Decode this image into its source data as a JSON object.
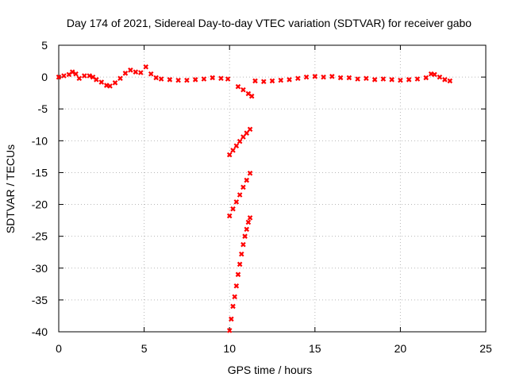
{
  "chart_data": {
    "type": "scatter",
    "title": "Day 174 of 2021, Sidereal Day-to-day VTEC variation (SDTVAR) for receiver gabo",
    "xlabel": "GPS time / hours",
    "ylabel": "SDTVAR / TECUs",
    "xlim": [
      0,
      25
    ],
    "ylim": [
      -40,
      5
    ],
    "xticks": [
      0,
      5,
      10,
      15,
      20,
      25
    ],
    "yticks": [
      -40,
      -35,
      -30,
      -25,
      -20,
      -15,
      -10,
      -5,
      0,
      5
    ],
    "xtick_labels": [
      "0",
      "5",
      "10",
      "15",
      "20",
      "25"
    ],
    "ytick_labels": [
      "-40",
      "-35",
      "-30",
      "-25",
      "-20",
      "-15",
      "-10",
      "-5",
      "0",
      "5"
    ],
    "grid": true,
    "legend": "none",
    "marker_color": "#ff0000",
    "series": [
      {
        "points": [
          [
            0.0,
            0.0
          ],
          [
            0.3,
            0.2
          ],
          [
            0.6,
            0.4
          ],
          [
            0.8,
            0.8
          ],
          [
            1.0,
            0.5
          ],
          [
            1.2,
            -0.2
          ],
          [
            1.5,
            0.2
          ],
          [
            1.8,
            0.2
          ],
          [
            2.0,
            0.0
          ],
          [
            2.2,
            -0.4
          ],
          [
            2.5,
            -0.8
          ],
          [
            2.8,
            -1.3
          ],
          [
            3.0,
            -1.4
          ],
          [
            3.3,
            -0.9
          ],
          [
            3.6,
            -0.2
          ],
          [
            3.9,
            0.6
          ],
          [
            4.2,
            1.1
          ],
          [
            4.5,
            0.8
          ],
          [
            4.8,
            0.7
          ],
          [
            5.1,
            1.6
          ],
          [
            5.4,
            0.5
          ],
          [
            5.7,
            -0.1
          ],
          [
            6.0,
            -0.3
          ],
          [
            6.5,
            -0.4
          ],
          [
            7.0,
            -0.5
          ],
          [
            7.5,
            -0.5
          ],
          [
            8.0,
            -0.4
          ],
          [
            8.5,
            -0.3
          ],
          [
            9.0,
            -0.1
          ],
          [
            9.5,
            -0.2
          ],
          [
            9.9,
            -0.3
          ],
          [
            10.5,
            -1.5
          ],
          [
            10.8,
            -2.0
          ],
          [
            11.1,
            -2.6
          ],
          [
            11.3,
            -3.0
          ],
          [
            11.5,
            -0.6
          ],
          [
            12.0,
            -0.7
          ],
          [
            12.5,
            -0.6
          ],
          [
            13.0,
            -0.5
          ],
          [
            13.5,
            -0.4
          ],
          [
            14.0,
            -0.2
          ],
          [
            14.5,
            0.0
          ],
          [
            15.0,
            0.1
          ],
          [
            15.5,
            0.0
          ],
          [
            16.0,
            0.1
          ],
          [
            16.5,
            -0.1
          ],
          [
            17.0,
            -0.1
          ],
          [
            17.5,
            -0.3
          ],
          [
            18.0,
            -0.2
          ],
          [
            18.5,
            -0.4
          ],
          [
            19.0,
            -0.3
          ],
          [
            19.5,
            -0.4
          ],
          [
            20.0,
            -0.5
          ],
          [
            20.5,
            -0.4
          ],
          [
            21.0,
            -0.3
          ],
          [
            21.5,
            -0.1
          ],
          [
            21.8,
            0.5
          ],
          [
            22.0,
            0.4
          ],
          [
            22.3,
            0.0
          ],
          [
            22.6,
            -0.4
          ],
          [
            22.9,
            -0.6
          ],
          [
            10.0,
            -12.2
          ],
          [
            10.2,
            -11.5
          ],
          [
            10.4,
            -10.8
          ],
          [
            10.6,
            -10.1
          ],
          [
            10.8,
            -9.4
          ],
          [
            11.0,
            -8.8
          ],
          [
            11.2,
            -8.2
          ],
          [
            10.0,
            -21.8
          ],
          [
            10.2,
            -20.7
          ],
          [
            10.4,
            -19.6
          ],
          [
            10.6,
            -18.5
          ],
          [
            10.8,
            -17.3
          ],
          [
            11.0,
            -16.2
          ],
          [
            11.2,
            -15.1
          ],
          [
            10.0,
            -39.8
          ],
          [
            10.1,
            -38.0
          ],
          [
            10.2,
            -36.0
          ],
          [
            10.3,
            -34.5
          ],
          [
            10.4,
            -32.8
          ],
          [
            10.5,
            -31.0
          ],
          [
            10.6,
            -29.4
          ],
          [
            10.7,
            -27.8
          ],
          [
            10.8,
            -26.3
          ],
          [
            10.9,
            -25.0
          ],
          [
            11.0,
            -23.9
          ],
          [
            11.1,
            -22.8
          ],
          [
            11.2,
            -22.1
          ]
        ]
      }
    ]
  }
}
